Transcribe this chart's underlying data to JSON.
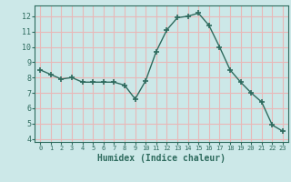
{
  "x": [
    0,
    1,
    2,
    3,
    4,
    5,
    6,
    7,
    8,
    9,
    10,
    11,
    12,
    13,
    14,
    15,
    16,
    17,
    18,
    19,
    20,
    21,
    22,
    23
  ],
  "y": [
    8.5,
    8.2,
    7.9,
    8.0,
    7.7,
    7.7,
    7.7,
    7.7,
    7.5,
    6.6,
    7.8,
    9.7,
    11.1,
    11.9,
    12.0,
    12.2,
    11.4,
    10.0,
    8.5,
    7.7,
    7.0,
    6.4,
    4.9,
    4.5
  ],
  "xlabel": "Humidex (Indice chaleur)",
  "ylim": [
    3.8,
    12.7
  ],
  "xlim": [
    -0.5,
    23.5
  ],
  "yticks": [
    4,
    5,
    6,
    7,
    8,
    9,
    10,
    11,
    12
  ],
  "xticks": [
    0,
    1,
    2,
    3,
    4,
    5,
    6,
    7,
    8,
    9,
    10,
    11,
    12,
    13,
    14,
    15,
    16,
    17,
    18,
    19,
    20,
    21,
    22,
    23
  ],
  "line_color": "#2e6b5e",
  "marker_color": "#2e6b5e",
  "bg_color": "#cce8e8",
  "grid_color": "#e8b8b8",
  "tick_label_color": "#2e6b5e",
  "xlabel_color": "#2e6b5e",
  "axis_color": "#2e6b5e"
}
